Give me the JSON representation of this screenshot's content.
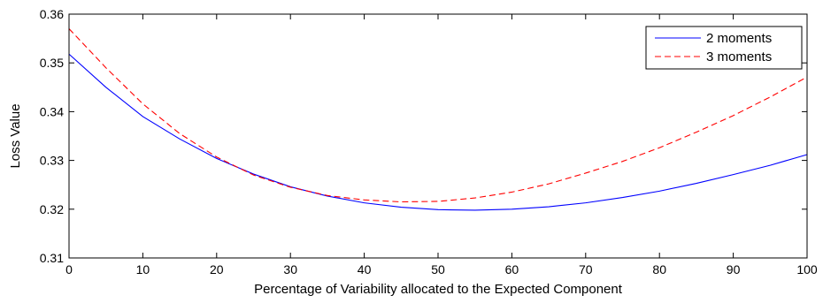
{
  "chart_data": {
    "type": "line",
    "title": "",
    "xlabel": "Percentage of Variability allocated to the Expected Component",
    "ylabel": "Loss Value",
    "xlim": [
      0,
      100
    ],
    "ylim": [
      0.31,
      0.36
    ],
    "x_ticks": [
      0,
      10,
      20,
      30,
      40,
      50,
      60,
      70,
      80,
      90,
      100
    ],
    "y_ticks": [
      "0.31",
      "0.32",
      "0.33",
      "0.34",
      "0.35",
      "0.36"
    ],
    "grid": false,
    "legend": "top-right",
    "x": [
      0,
      5,
      10,
      15,
      20,
      25,
      30,
      35,
      40,
      45,
      50,
      55,
      60,
      65,
      70,
      75,
      80,
      85,
      90,
      95,
      100
    ],
    "series": [
      {
        "name": "2 moments",
        "color": "#0000ff",
        "dash": "solid",
        "values": [
          0.3518,
          0.345,
          0.339,
          0.3344,
          0.3304,
          0.3272,
          0.3246,
          0.3227,
          0.3213,
          0.3204,
          0.3199,
          0.3198,
          0.32,
          0.3205,
          0.3213,
          0.3224,
          0.3237,
          0.3253,
          0.3271,
          0.329,
          0.3312
        ]
      },
      {
        "name": "3 moments",
        "color": "#ff0000",
        "dash": "dashed",
        "values": [
          0.357,
          0.349,
          0.3416,
          0.3355,
          0.3307,
          0.327,
          0.3245,
          0.3228,
          0.3219,
          0.3215,
          0.3216,
          0.3223,
          0.3235,
          0.3252,
          0.3274,
          0.3298,
          0.3326,
          0.3358,
          0.3392,
          0.343,
          0.3471
        ]
      }
    ]
  }
}
